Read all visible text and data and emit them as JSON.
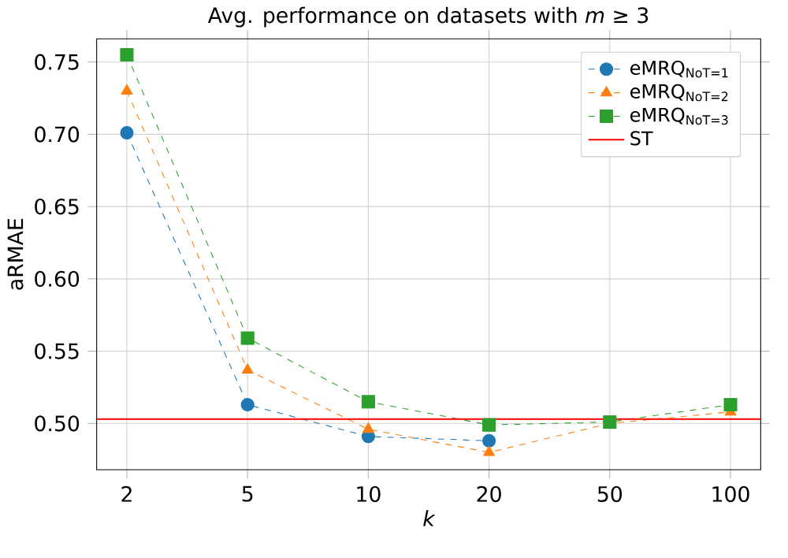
{
  "chart_data": {
    "type": "line",
    "title": "Avg. performance on datasets with *m* ≥ 3",
    "xlabel": "k",
    "ylabel": "aRMAE",
    "categories": [
      "2",
      "5",
      "10",
      "20",
      "50",
      "100"
    ],
    "series": [
      {
        "name": "eMRQ$_{NoT=1}$",
        "color": "#1f77b4",
        "marker": "circle",
        "line_style": "dashed",
        "values": [
          0.701,
          0.513,
          0.491,
          0.488,
          null,
          null
        ]
      },
      {
        "name": "eMRQ$_{NoT=2}$",
        "color": "#ff7f0e",
        "marker": "triangle",
        "line_style": "dashed",
        "values": [
          0.73,
          0.537,
          0.496,
          0.48,
          0.5,
          0.508
        ]
      },
      {
        "name": "eMRQ$_{NoT=3}$",
        "color": "#2ca02c",
        "marker": "square",
        "line_style": "dashed",
        "values": [
          0.755,
          0.559,
          0.515,
          0.499,
          0.501,
          0.513
        ]
      }
    ],
    "ref_lines": [
      {
        "axis": "y",
        "value": 0.503,
        "label": "ST",
        "color": "#ff0000",
        "line_style": "solid"
      }
    ],
    "ylim": [
      0.468,
      0.766
    ],
    "yticks": [
      {
        "value": 0.5,
        "label": "0.50"
      },
      0.55,
      {
        "value": 0.6,
        "label": "0.60"
      },
      0.65,
      {
        "value": 0.7,
        "label": "0.70"
      },
      0.75
    ],
    "grid": true,
    "legend": "top right"
  }
}
